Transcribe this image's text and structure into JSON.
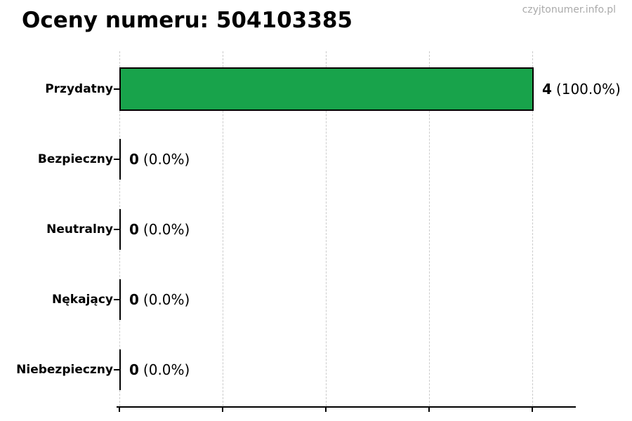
{
  "page": {
    "title": "Oceny numeru: 504103385",
    "watermark": "czyjtonumer.info.pl"
  },
  "colors": {
    "bar_fill": "#18a34b",
    "bar_edge": "#000000",
    "grid": "#cccccc",
    "axis": "#000000",
    "watermark_text": "#aaaaaa",
    "text": "#000000"
  },
  "rows": [
    {
      "label": "Przydatny",
      "count": "4",
      "pct": "(100.0%)"
    },
    {
      "label": "Bezpieczny",
      "count": "0",
      "pct": "(0.0%)"
    },
    {
      "label": "Neutralny",
      "count": "0",
      "pct": "(0.0%)"
    },
    {
      "label": "Nękający",
      "count": "0",
      "pct": "(0.0%)"
    },
    {
      "label": "Niebezpieczny",
      "count": "0",
      "pct": "(0.0%)"
    }
  ],
  "chart_data": {
    "type": "bar",
    "orientation": "horizontal",
    "title": "Oceny numeru: 504103385",
    "categories": [
      "Przydatny",
      "Bezpieczny",
      "Neutralny",
      "Nękający",
      "Niebezpieczny"
    ],
    "values": [
      4,
      0,
      0,
      0,
      0
    ],
    "percentages": [
      100.0,
      0.0,
      0.0,
      0.0,
      0.0
    ],
    "value_labels": [
      "4 (100.0%)",
      "0 (0.0%)",
      "0 (0.0%)",
      "0 (0.0%)",
      "0 (0.0%)"
    ],
    "xlabel": "",
    "ylabel": "",
    "xlim": [
      0,
      4.4
    ],
    "x_ticks": [
      0,
      1,
      2,
      3,
      4
    ],
    "grid": "vertical-dashed",
    "legend": "none",
    "bar_color": "#18a34b",
    "bar_edge_color": "#000000"
  }
}
